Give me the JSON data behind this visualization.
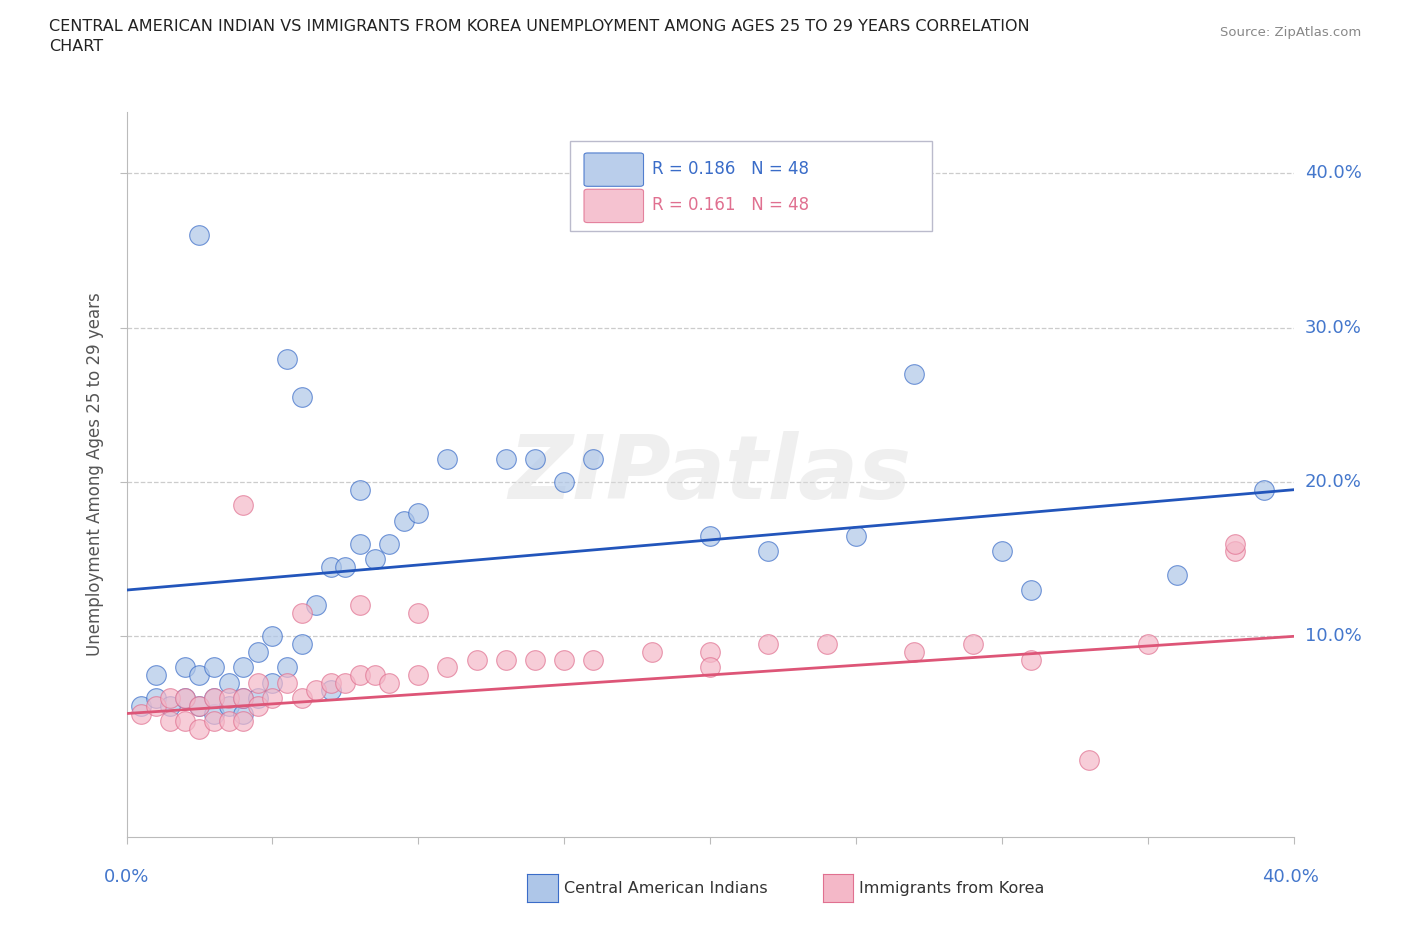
{
  "title_line1": "CENTRAL AMERICAN INDIAN VS IMMIGRANTS FROM KOREA UNEMPLOYMENT AMONG AGES 25 TO 29 YEARS CORRELATION",
  "title_line2": "CHART",
  "source": "Source: ZipAtlas.com",
  "ylabel": "Unemployment Among Ages 25 to 29 years",
  "xlim": [
    0.0,
    0.4
  ],
  "ylim": [
    -0.03,
    0.44
  ],
  "ytick_vals": [
    0.1,
    0.2,
    0.3,
    0.4
  ],
  "ytick_labels": [
    "10.0%",
    "20.0%",
    "30.0%",
    "40.0%"
  ],
  "legend_label1": "Central American Indians",
  "legend_label2": "Immigrants from Korea",
  "color_blue": "#AEC6E8",
  "color_pink": "#F4B8C8",
  "line_blue": "#3A6CC8",
  "line_pink": "#E07090",
  "trend_blue": "#2255BB",
  "trend_pink": "#DD5577",
  "watermark": "ZIPatlas",
  "blue_x": [
    0.005,
    0.01,
    0.01,
    0.015,
    0.02,
    0.02,
    0.025,
    0.025,
    0.03,
    0.03,
    0.03,
    0.035,
    0.035,
    0.04,
    0.04,
    0.04,
    0.045,
    0.045,
    0.05,
    0.05,
    0.055,
    0.06,
    0.065,
    0.07,
    0.075,
    0.08,
    0.08,
    0.085,
    0.09,
    0.095,
    0.1,
    0.11,
    0.13,
    0.14,
    0.15,
    0.16,
    0.2,
    0.22,
    0.25,
    0.27,
    0.3,
    0.31,
    0.36,
    0.39,
    0.025,
    0.055,
    0.06,
    0.07
  ],
  "blue_y": [
    0.055,
    0.06,
    0.075,
    0.055,
    0.06,
    0.08,
    0.055,
    0.075,
    0.05,
    0.06,
    0.08,
    0.055,
    0.07,
    0.05,
    0.06,
    0.08,
    0.06,
    0.09,
    0.07,
    0.1,
    0.08,
    0.095,
    0.12,
    0.145,
    0.145,
    0.16,
    0.195,
    0.15,
    0.16,
    0.175,
    0.18,
    0.215,
    0.215,
    0.215,
    0.2,
    0.215,
    0.165,
    0.155,
    0.165,
    0.27,
    0.155,
    0.13,
    0.14,
    0.195,
    0.36,
    0.28,
    0.255,
    0.065
  ],
  "pink_x": [
    0.005,
    0.01,
    0.015,
    0.015,
    0.02,
    0.02,
    0.025,
    0.025,
    0.03,
    0.03,
    0.035,
    0.035,
    0.04,
    0.04,
    0.045,
    0.045,
    0.05,
    0.055,
    0.06,
    0.065,
    0.07,
    0.075,
    0.08,
    0.085,
    0.09,
    0.1,
    0.11,
    0.12,
    0.13,
    0.14,
    0.15,
    0.16,
    0.18,
    0.2,
    0.22,
    0.24,
    0.27,
    0.29,
    0.31,
    0.35,
    0.38,
    0.04,
    0.06,
    0.08,
    0.1,
    0.2,
    0.33,
    0.38
  ],
  "pink_y": [
    0.05,
    0.055,
    0.045,
    0.06,
    0.045,
    0.06,
    0.04,
    0.055,
    0.045,
    0.06,
    0.045,
    0.06,
    0.045,
    0.06,
    0.055,
    0.07,
    0.06,
    0.07,
    0.06,
    0.065,
    0.07,
    0.07,
    0.075,
    0.075,
    0.07,
    0.075,
    0.08,
    0.085,
    0.085,
    0.085,
    0.085,
    0.085,
    0.09,
    0.09,
    0.095,
    0.095,
    0.09,
    0.095,
    0.085,
    0.095,
    0.155,
    0.185,
    0.115,
    0.12,
    0.115,
    0.08,
    0.02,
    0.16
  ],
  "blue_trend_x": [
    0.0,
    0.4
  ],
  "blue_trend_y": [
    0.13,
    0.195
  ],
  "pink_trend_x": [
    0.0,
    0.4
  ],
  "pink_trend_y": [
    0.05,
    0.1
  ]
}
